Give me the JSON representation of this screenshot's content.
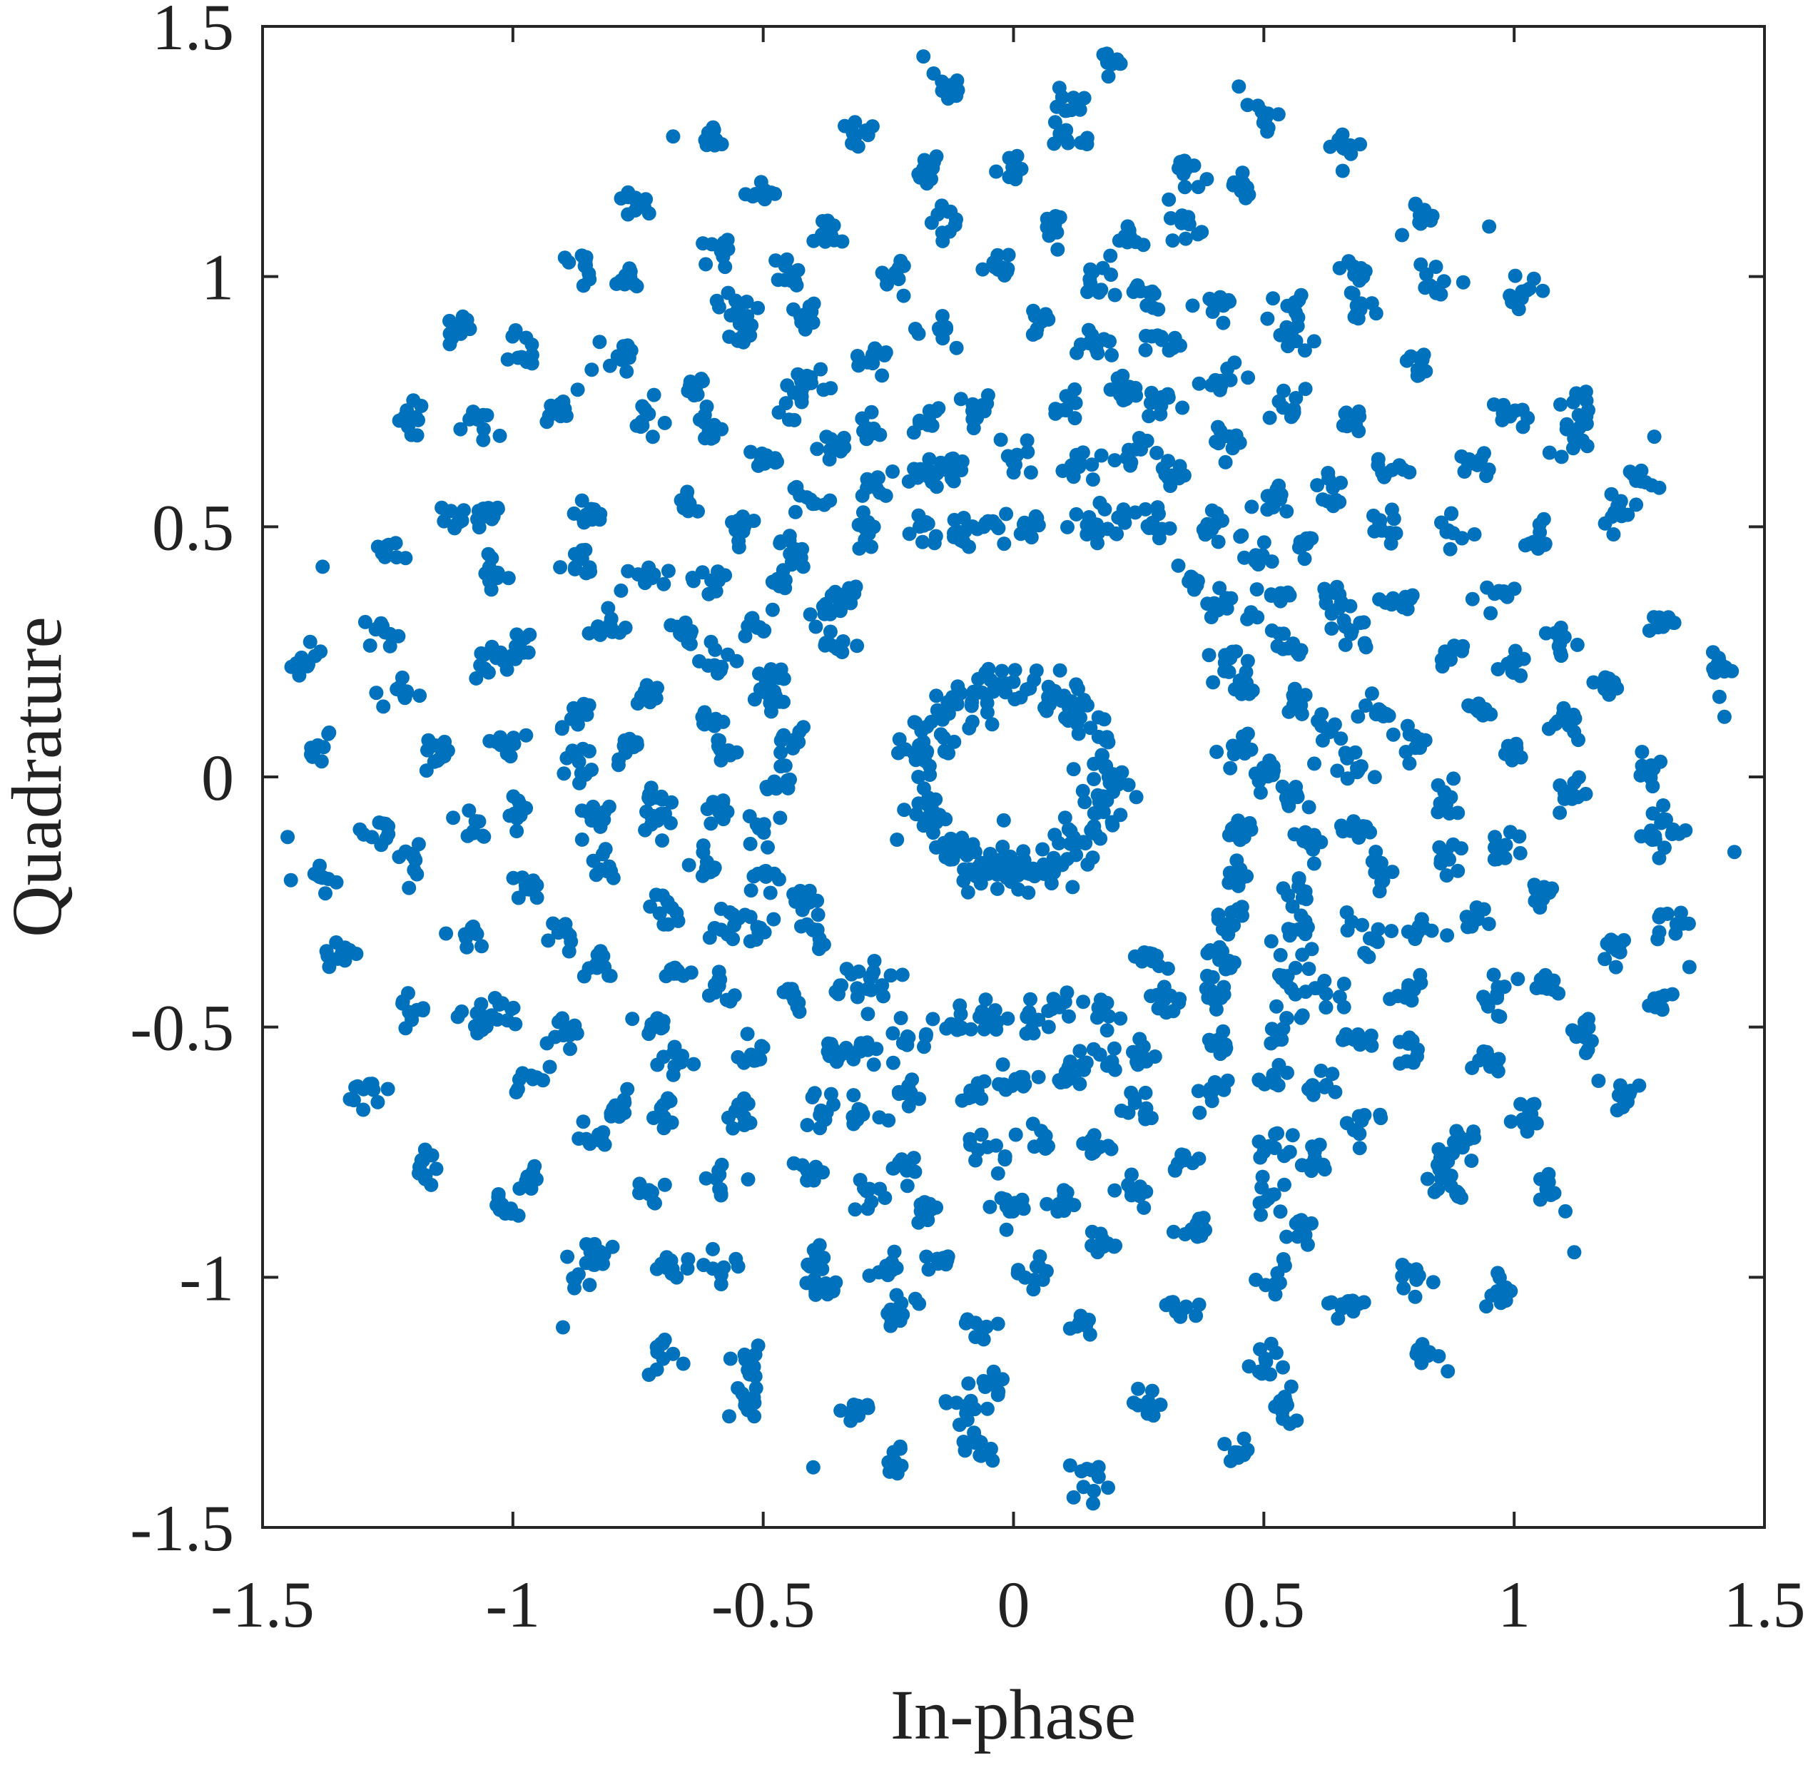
{
  "chart_data": {
    "type": "scatter",
    "title": "",
    "xlabel": "In-phase",
    "ylabel": "Quadrature",
    "xlim": [
      -1.5,
      1.5
    ],
    "ylim": [
      -1.5,
      1.5
    ],
    "xticks": [
      -1.5,
      -1,
      -0.5,
      0,
      0.5,
      1,
      1.5
    ],
    "yticks": [
      -1.5,
      -1,
      -0.5,
      0,
      0.5,
      1,
      1.5
    ],
    "xtick_labels": [
      "-1.5",
      "-1",
      "-0.5",
      "0",
      "0.5",
      "1",
      "1.5"
    ],
    "ytick_labels": [
      "-1.5",
      "-1",
      "-0.5",
      "0",
      "0.5",
      "1",
      "1.5"
    ],
    "grid": false,
    "legend": false,
    "marker_color": "#0072BD",
    "series": [
      {
        "description_visible": false,
        "structure": {
          "inner_ring": {
            "radius": 0.19,
            "spread": 0.025,
            "count": 220
          },
          "outer_arms": {
            "count": 40,
            "r_start": 0.45,
            "r_end": 1.44,
            "spiral_twist": 0.6,
            "clusters_per_arm": 8,
            "points_per_cluster": 10
          }
        },
        "points": [
          [
            0.0,
            0.19
          ],
          [
            0.07,
            0.18
          ],
          [
            0.13,
            0.14
          ],
          [
            0.17,
            0.08
          ],
          [
            0.19,
            0.0
          ],
          [
            0.18,
            -0.07
          ],
          [
            0.14,
            -0.13
          ],
          [
            0.08,
            -0.17
          ],
          [
            0.0,
            -0.19
          ],
          [
            -0.07,
            -0.18
          ],
          [
            -0.13,
            -0.14
          ],
          [
            -0.17,
            -0.08
          ],
          [
            -0.19,
            0.0
          ],
          [
            -0.18,
            0.07
          ],
          [
            -0.14,
            0.13
          ],
          [
            -0.08,
            0.17
          ],
          [
            1.42,
            0.12
          ],
          [
            1.41,
            0.16
          ],
          [
            1.28,
            0.68
          ],
          [
            1.44,
            -0.15
          ],
          [
            1.35,
            -0.38
          ],
          [
            1.12,
            -0.95
          ],
          [
            0.7,
            -1.05
          ],
          [
            0.12,
            -1.44
          ],
          [
            -0.4,
            -1.38
          ],
          [
            -0.9,
            -1.1
          ],
          [
            -1.27,
            -0.65
          ],
          [
            -1.45,
            -0.12
          ],
          [
            -1.38,
            0.42
          ],
          [
            -1.1,
            0.92
          ],
          [
            -0.68,
            1.28
          ],
          [
            -0.18,
            1.44
          ],
          [
            0.45,
            1.38
          ],
          [
            0.95,
            1.1
          ],
          [
            0.12,
            0.6
          ],
          [
            0.55,
            0.13
          ],
          [
            0.05,
            -0.6
          ],
          [
            -0.6,
            -0.05
          ],
          [
            -0.42,
            0.42
          ],
          [
            0.42,
            -0.42
          ]
        ]
      }
    ]
  }
}
